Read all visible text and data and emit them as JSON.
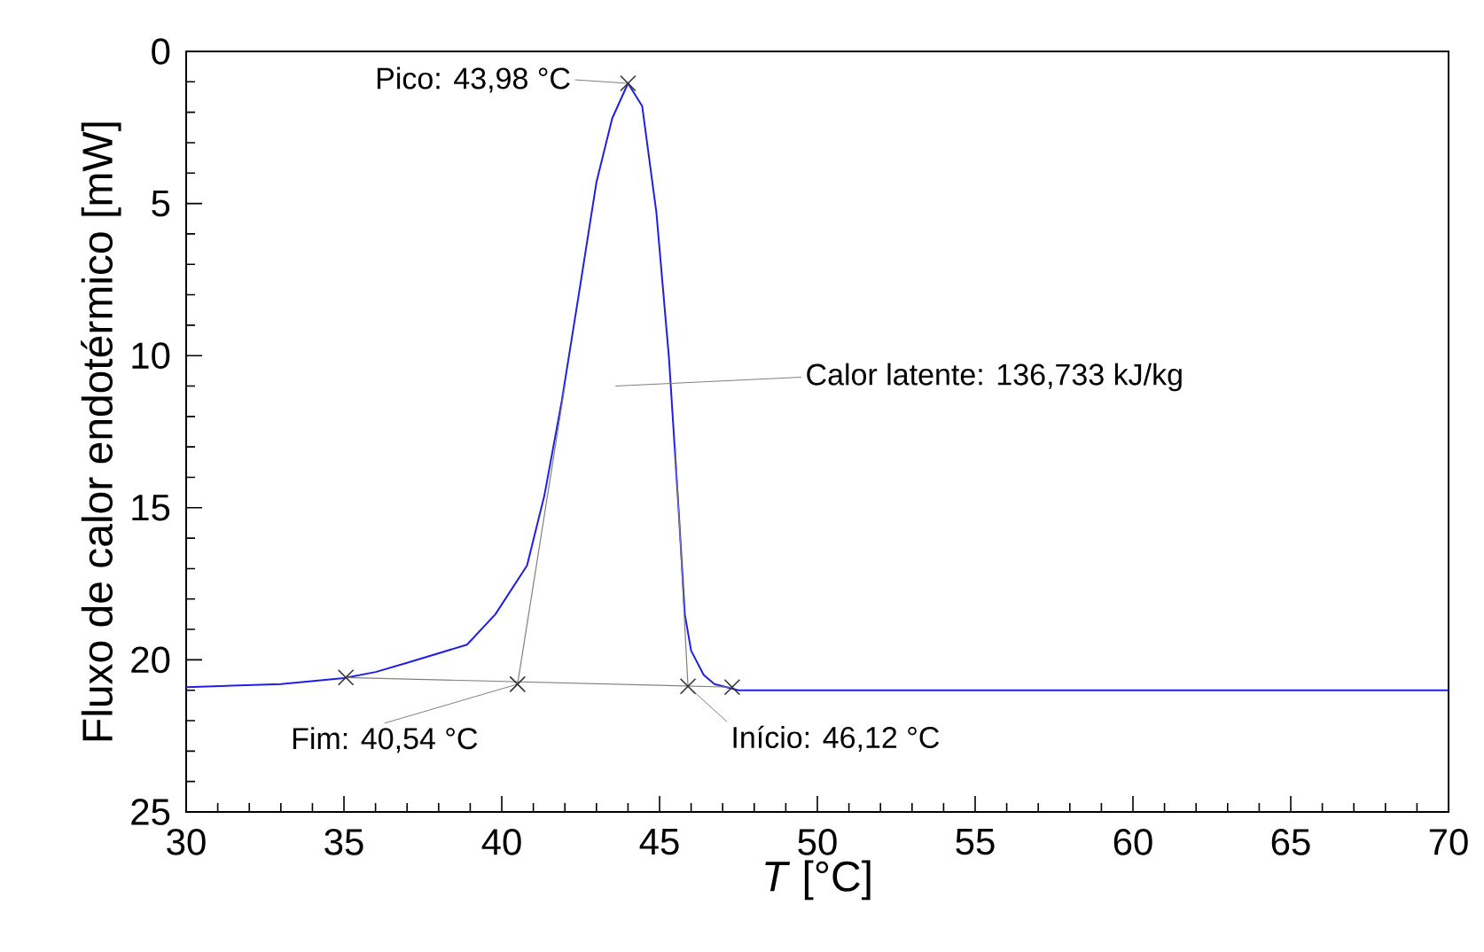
{
  "chart_data": {
    "type": "line",
    "xlabel": "*T* [°C]",
    "ylabel": "Fluxo de calor endotérmico [mW]",
    "xlim": [
      30,
      70
    ],
    "ylim": [
      25,
      0
    ],
    "xticks": [
      30,
      35,
      40,
      45,
      50,
      55,
      60,
      65,
      70
    ],
    "yticks": [
      0,
      5,
      10,
      15,
      20,
      25
    ],
    "grid": false,
    "series": [
      {
        "color": "#1f1fe6",
        "x": [
          30,
          33,
          35,
          36,
          37,
          38.9,
          39.8,
          40.8,
          41.35,
          41.9,
          42.5,
          43.0,
          43.5,
          44.0,
          44.45,
          44.9,
          45.3,
          45.6,
          45.8,
          46.0,
          46.4,
          46.74,
          47.5,
          70
        ],
        "values": [
          20.9,
          20.8,
          20.6,
          20.4,
          20.1,
          19.5,
          18.5,
          16.9,
          14.6,
          11.5,
          7.6,
          4.3,
          2.2,
          1.05,
          1.8,
          5.3,
          10.1,
          15.0,
          18.5,
          19.7,
          20.5,
          20.8,
          21.0,
          21.0
        ]
      },
      {
        "color": "#808080",
        "x": [
          35.06,
          47.3
        ],
        "values": [
          20.58,
          20.9
        ]
      },
      {
        "color": "#808080",
        "x": [
          40.5,
          42.0
        ],
        "values": [
          20.8,
          11.0
        ]
      },
      {
        "color": "#808080",
        "x": [
          45.9,
          45.5
        ],
        "values": [
          20.87,
          13.0
        ]
      },
      {
        "type": "scatter",
        "color": "#333333",
        "marker": "cross",
        "x": [
          35.06,
          40.5,
          44.0,
          45.9,
          47.3
        ],
        "values": [
          20.58,
          20.8,
          1.05,
          20.87,
          20.9
        ]
      }
    ],
    "annotations": [
      {
        "text": "Pico: 43,98 °C",
        "x": 44.0,
        "y": 1.05
      },
      "Calor latente: 136,733 kJ/kg",
      {
        "text": "Fim: 40,54 °C",
        "x": 40.5,
        "y": 20.8
      },
      {
        "text": "Início: 46,12 °C",
        "x": 45.9,
        "y": 20.87
      }
    ]
  }
}
